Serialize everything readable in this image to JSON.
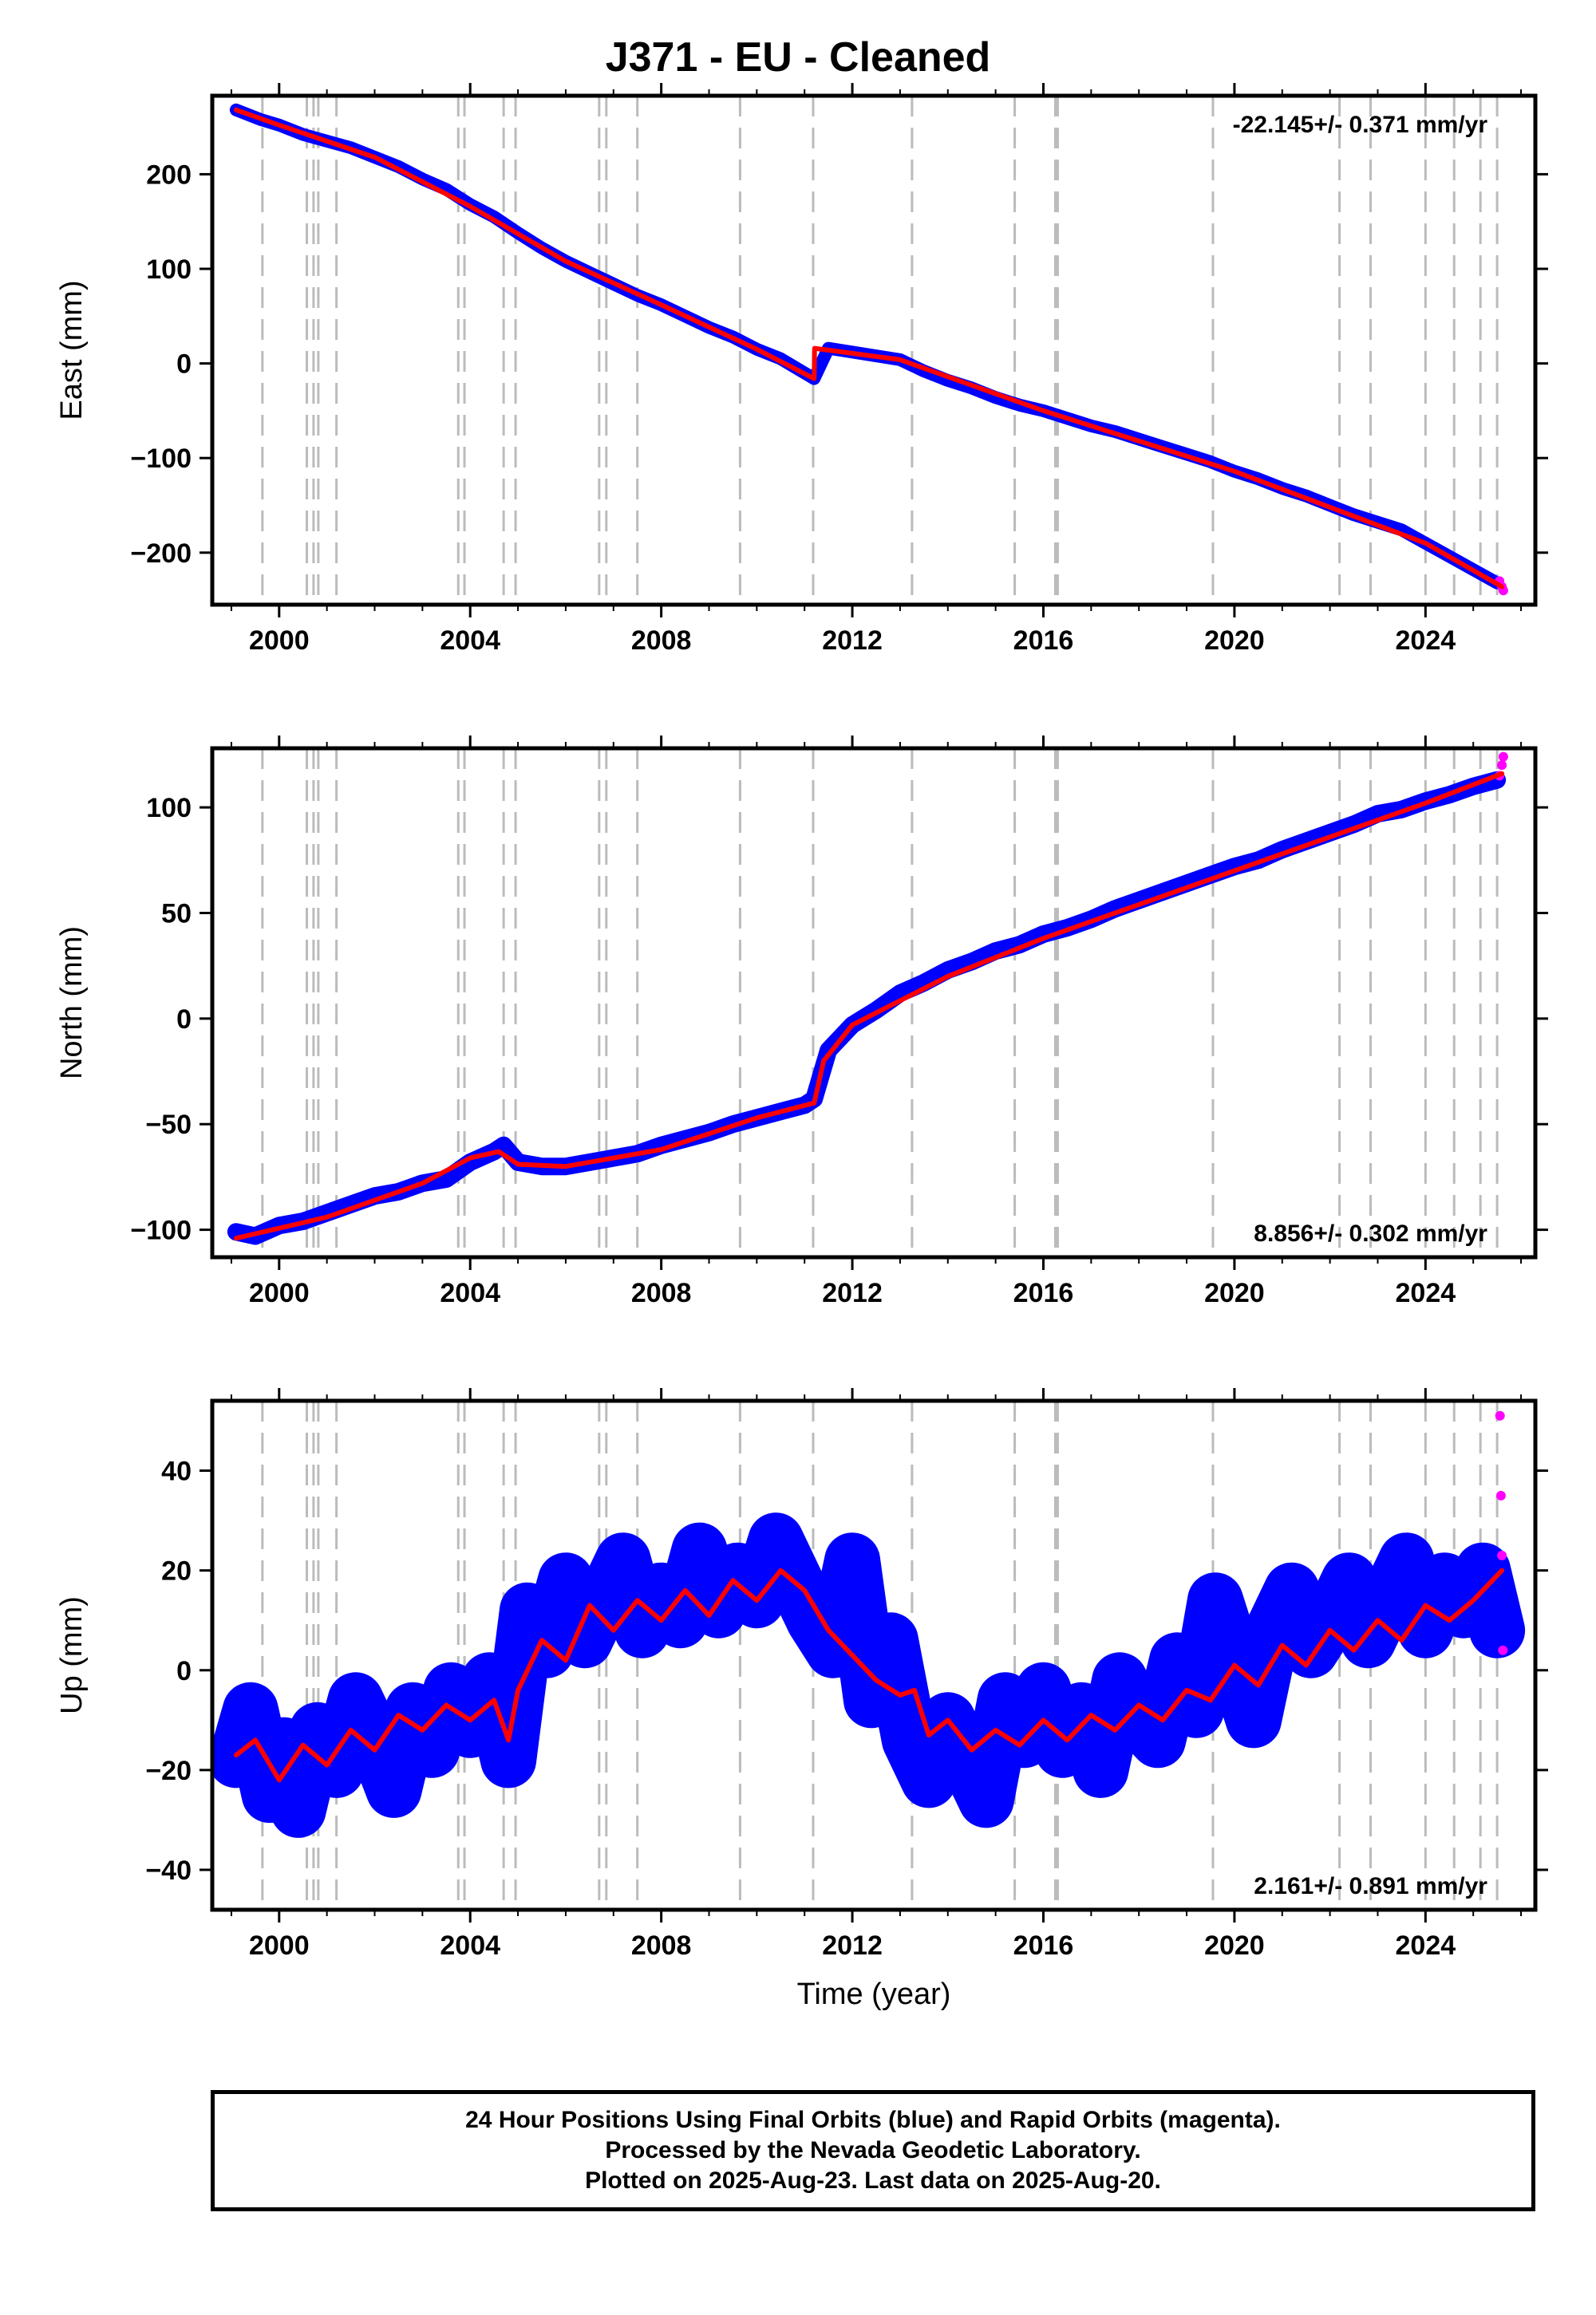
{
  "title": "J371  - EU - Cleaned",
  "footer": {
    "line1": "24 Hour Positions Using Final Orbits (blue) and Rapid Orbits (magenta).",
    "line2": "Processed by the Nevada Geodetic Laboratory.",
    "line3": "Plotted on 2025-Aug-23. Last data on 2025-Aug-20."
  },
  "colors": {
    "final_orbits": "#0000ff",
    "rapid_orbits": "#ff00ff",
    "model": "#ff0000",
    "event_lines": "#bbbbbb"
  },
  "chart_data": [
    {
      "type": "scatter",
      "panel": "east",
      "ylabel": "East (mm)",
      "xlabel": "",
      "xlim": [
        1998.6,
        2026.3
      ],
      "ylim": [
        -255,
        283
      ],
      "x_ticks": [
        2000,
        2004,
        2008,
        2012,
        2016,
        2020,
        2024
      ],
      "y_ticks": [
        -200,
        -100,
        0,
        100,
        200
      ],
      "rate_text": "-22.145+/- 0.371 mm/yr",
      "rate_position": "top-right",
      "grid": false,
      "series": [
        {
          "name": "Final Orbits (blue)",
          "color": "#0000ff",
          "kind": "points",
          "x": [
            1999.1,
            1999.6,
            2000.0,
            2000.5,
            2001.0,
            2001.5,
            2002.0,
            2002.5,
            2003.0,
            2003.5,
            2004.0,
            2004.5,
            2005.0,
            2005.5,
            2006.0,
            2006.5,
            2007.0,
            2007.5,
            2008.0,
            2008.5,
            2009.0,
            2009.5,
            2010.0,
            2010.5,
            2011.0,
            2011.2,
            2011.5,
            2012.0,
            2012.5,
            2013.0,
            2013.5,
            2014.0,
            2014.5,
            2015.0,
            2015.5,
            2016.0,
            2016.5,
            2017.0,
            2017.5,
            2018.0,
            2018.5,
            2019.0,
            2019.5,
            2020.0,
            2020.5,
            2021.0,
            2021.5,
            2022.0,
            2022.5,
            2023.0,
            2023.5,
            2024.0,
            2024.5,
            2025.0,
            2025.5
          ],
          "y": [
            268,
            258,
            252,
            242,
            235,
            228,
            218,
            208,
            195,
            184,
            168,
            155,
            138,
            122,
            108,
            96,
            84,
            72,
            62,
            50,
            38,
            28,
            15,
            5,
            -10,
            -16,
            16,
            12,
            8,
            4,
            -8,
            -18,
            -26,
            -36,
            -44,
            -50,
            -58,
            -66,
            -72,
            -80,
            -88,
            -96,
            -104,
            -114,
            -122,
            -132,
            -140,
            -150,
            -160,
            -168,
            -176,
            -190,
            -204,
            -218,
            -232
          ]
        },
        {
          "name": "Rapid Orbits (magenta)",
          "color": "#ff00ff",
          "kind": "points",
          "x": [
            2025.55,
            2025.6,
            2025.63
          ],
          "y": [
            -230,
            -236,
            -240
          ]
        },
        {
          "name": "Model",
          "color": "#ff0000",
          "kind": "line",
          "x": [
            1999.1,
            2000.0,
            2002.0,
            2004.0,
            2006.0,
            2008.0,
            2010.0,
            2011.2,
            2011.21,
            2013.0,
            2016.0,
            2020.0,
            2024.0,
            2025.6
          ],
          "y": [
            268,
            252,
            218,
            166,
            108,
            62,
            15,
            -16,
            16,
            4,
            -50,
            -114,
            -190,
            -236
          ]
        }
      ]
    },
    {
      "type": "scatter",
      "panel": "north",
      "ylabel": "North (mm)",
      "xlabel": "",
      "xlim": [
        1998.6,
        2026.3
      ],
      "ylim": [
        -113,
        128
      ],
      "x_ticks": [
        2000,
        2004,
        2008,
        2012,
        2016,
        2020,
        2024
      ],
      "y_ticks": [
        -100,
        -50,
        0,
        50,
        100
      ],
      "rate_text": "8.856+/- 0.302 mm/yr",
      "rate_position": "bottom-right",
      "grid": false,
      "series": [
        {
          "name": "Final Orbits (blue)",
          "color": "#0000ff",
          "kind": "points",
          "x": [
            1999.1,
            1999.5,
            2000.0,
            2000.5,
            2001.0,
            2001.5,
            2002.0,
            2002.5,
            2003.0,
            2003.5,
            2004.0,
            2004.5,
            2004.7,
            2005.0,
            2005.5,
            2006.0,
            2006.5,
            2007.0,
            2007.5,
            2008.0,
            2008.5,
            2009.0,
            2009.5,
            2010.0,
            2010.5,
            2011.0,
            2011.2,
            2011.5,
            2012.0,
            2012.5,
            2013.0,
            2013.5,
            2014.0,
            2014.5,
            2015.0,
            2015.5,
            2016.0,
            2016.5,
            2017.0,
            2017.5,
            2018.0,
            2018.5,
            2019.0,
            2019.5,
            2020.0,
            2020.5,
            2021.0,
            2021.5,
            2022.0,
            2022.5,
            2023.0,
            2023.5,
            2024.0,
            2024.5,
            2025.0,
            2025.5
          ],
          "y": [
            -101,
            -103,
            -98,
            -96,
            -92,
            -88,
            -84,
            -82,
            -78,
            -76,
            -68,
            -63,
            -60,
            -68,
            -70,
            -70,
            -68,
            -66,
            -64,
            -60,
            -57,
            -54,
            -50,
            -47,
            -44,
            -41,
            -38,
            -15,
            -3,
            4,
            12,
            17,
            23,
            27,
            32,
            35,
            40,
            43,
            47,
            52,
            56,
            60,
            64,
            68,
            72,
            75,
            80,
            84,
            88,
            92,
            97,
            99,
            103,
            106,
            110,
            113
          ]
        },
        {
          "name": "Rapid Orbits (magenta)",
          "color": "#ff00ff",
          "kind": "points",
          "x": [
            2025.55,
            2025.6,
            2025.63
          ],
          "y": [
            115,
            120,
            124
          ]
        },
        {
          "name": "Model",
          "color": "#ff0000",
          "kind": "line",
          "x": [
            1999.1,
            2001.0,
            2003.0,
            2004.0,
            2004.6,
            2005.0,
            2006.0,
            2008.0,
            2010.0,
            2011.2,
            2011.4,
            2012.0,
            2014.0,
            2016.0,
            2018.0,
            2020.0,
            2022.0,
            2024.0,
            2025.6
          ],
          "y": [
            -104,
            -94,
            -78,
            -66,
            -63,
            -69,
            -70,
            -62,
            -47,
            -40,
            -20,
            -3,
            20,
            38,
            54,
            70,
            86,
            102,
            116
          ]
        }
      ]
    },
    {
      "type": "scatter",
      "panel": "up",
      "ylabel": "Up (mm)",
      "xlabel": "Time (year)",
      "xlim": [
        1998.6,
        2026.3
      ],
      "ylim": [
        -48,
        54
      ],
      "x_ticks": [
        2000,
        2004,
        2008,
        2012,
        2016,
        2020,
        2024
      ],
      "y_ticks": [
        -40,
        -20,
        0,
        20,
        40
      ],
      "rate_text": "2.161+/- 0.891 mm/yr",
      "rate_position": "bottom-right",
      "grid": false,
      "series": [
        {
          "name": "Final Orbits (blue)",
          "color": "#0000ff",
          "kind": "points",
          "x": [
            1999.1,
            1999.4,
            1999.8,
            2000.1,
            2000.4,
            2000.8,
            2001.2,
            2001.6,
            2002.0,
            2002.4,
            2002.8,
            2003.2,
            2003.6,
            2004.0,
            2004.4,
            2004.8,
            2005.2,
            2005.6,
            2006.0,
            2006.4,
            2006.8,
            2007.2,
            2007.6,
            2008.0,
            2008.4,
            2008.8,
            2009.2,
            2009.6,
            2010.0,
            2010.4,
            2010.8,
            2011.2,
            2011.6,
            2012.0,
            2012.4,
            2012.8,
            2013.2,
            2013.6,
            2014.0,
            2014.4,
            2014.8,
            2015.2,
            2015.6,
            2016.0,
            2016.4,
            2016.8,
            2017.2,
            2017.6,
            2018.0,
            2018.4,
            2018.8,
            2019.2,
            2019.6,
            2020.0,
            2020.4,
            2020.8,
            2021.2,
            2021.6,
            2022.0,
            2022.4,
            2022.8,
            2023.2,
            2023.6,
            2024.0,
            2024.4,
            2024.8,
            2025.2,
            2025.5
          ],
          "y": [
            -18,
            -8,
            -25,
            -15,
            -28,
            -12,
            -20,
            -6,
            -14,
            -24,
            -8,
            -16,
            -4,
            -12,
            -2,
            -18,
            12,
            4,
            18,
            6,
            14,
            22,
            8,
            16,
            10,
            24,
            12,
            20,
            14,
            26,
            18,
            10,
            4,
            22,
            -6,
            6,
            -14,
            -22,
            -10,
            -18,
            -26,
            -6,
            -14,
            -4,
            -16,
            -8,
            -20,
            -2,
            -10,
            -14,
            2,
            -8,
            14,
            2,
            -10,
            8,
            16,
            4,
            10,
            18,
            6,
            14,
            22,
            8,
            18,
            12,
            20,
            8
          ]
        },
        {
          "name": "Rapid Orbits (magenta)",
          "color": "#ff00ff",
          "kind": "points",
          "x": [
            2025.56,
            2025.58,
            2025.6,
            2025.62
          ],
          "y": [
            51,
            35,
            23,
            4
          ]
        },
        {
          "name": "Model",
          "color": "#ff0000",
          "kind": "line",
          "x": [
            1999.1,
            1999.5,
            2000.0,
            2000.5,
            2001.0,
            2001.5,
            2002.0,
            2002.5,
            2003.0,
            2003.5,
            2004.0,
            2004.5,
            2004.8,
            2005.0,
            2005.5,
            2006.0,
            2006.5,
            2007.0,
            2007.5,
            2008.0,
            2008.5,
            2009.0,
            2009.5,
            2010.0,
            2010.5,
            2011.0,
            2011.5,
            2012.0,
            2012.5,
            2013.0,
            2013.3,
            2013.6,
            2014.0,
            2014.5,
            2015.0,
            2015.5,
            2016.0,
            2016.5,
            2017.0,
            2017.5,
            2018.0,
            2018.5,
            2019.0,
            2019.5,
            2020.0,
            2020.5,
            2021.0,
            2021.5,
            2022.0,
            2022.5,
            2023.0,
            2023.5,
            2024.0,
            2024.5,
            2025.0,
            2025.6
          ],
          "y": [
            -17,
            -14,
            -22,
            -15,
            -19,
            -12,
            -16,
            -9,
            -12,
            -7,
            -10,
            -6,
            -14,
            -4,
            6,
            2,
            13,
            8,
            14,
            10,
            16,
            11,
            18,
            14,
            20,
            16,
            8,
            3,
            -2,
            -5,
            -4,
            -13,
            -10,
            -16,
            -12,
            -15,
            -10,
            -14,
            -9,
            -12,
            -7,
            -10,
            -4,
            -6,
            1,
            -3,
            5,
            1,
            8,
            4,
            10,
            6,
            13,
            10,
            14,
            20
          ]
        }
      ]
    }
  ],
  "event_lines_years": [
    1999.65,
    2000.58,
    2000.72,
    2000.82,
    2001.2,
    2003.75,
    2003.88,
    2004.7,
    2004.95,
    2006.7,
    2006.85,
    2007.5,
    2009.65,
    2011.18,
    2013.25,
    2015.4,
    2016.25,
    2016.3,
    2019.55,
    2022.2,
    2022.85,
    2024.0,
    2024.6,
    2025.15,
    2025.5
  ]
}
